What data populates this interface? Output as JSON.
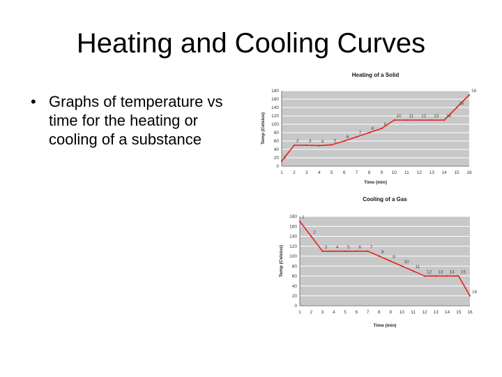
{
  "slide": {
    "title": "Heating and Cooling Curves",
    "bullet_symbol": "•",
    "bullet": "Graphs of temperature vs time for the heating or cooling of a substance"
  },
  "colors": {
    "line": "#e8201c",
    "plot_bg": "#c8c8c8",
    "grid": "#ffffff"
  },
  "chart_data": [
    {
      "type": "line",
      "title": "Heating of a Solid",
      "xlabel": "Time (min)",
      "ylabel": "Temp (Celsius)",
      "x": [
        1,
        2,
        3,
        4,
        5,
        6,
        7,
        8,
        9,
        10,
        11,
        12,
        13,
        14,
        15,
        16
      ],
      "xlim": [
        1,
        16
      ],
      "ylim": [
        0,
        180
      ],
      "yticks": [
        0,
        20,
        40,
        60,
        80,
        100,
        120,
        140,
        160,
        180
      ],
      "grid": true,
      "series": [
        {
          "values": [
            12,
            50,
            50,
            49,
            51,
            60,
            70,
            80,
            90,
            110,
            110,
            110,
            110,
            110,
            140,
            170
          ],
          "point_labels": [
            "1",
            "2",
            "3",
            "4",
            "5",
            "6",
            "7",
            "8",
            "9",
            "10",
            "11",
            "12",
            "13",
            "14",
            "15",
            "16"
          ]
        }
      ]
    },
    {
      "type": "line",
      "title": "Cooling of a Gas",
      "xlabel": "Time (min)",
      "ylabel": "Temp (Celsius)",
      "x": [
        1,
        2,
        3,
        4,
        5,
        6,
        7,
        8,
        9,
        10,
        11,
        12,
        13,
        14,
        15,
        16
      ],
      "xlim": [
        1,
        16
      ],
      "ylim": [
        0,
        180
      ],
      "yticks": [
        0,
        20,
        40,
        60,
        80,
        100,
        120,
        140,
        160,
        180
      ],
      "grid": true,
      "series": [
        {
          "values": [
            170,
            140,
            110,
            110,
            110,
            110,
            110,
            100,
            90,
            80,
            70,
            60,
            60,
            60,
            60,
            20
          ],
          "point_labels": [
            "1",
            "2",
            "3",
            "4",
            "5",
            "6",
            "7",
            "8",
            "9",
            "10",
            "11",
            "12",
            "13",
            "14",
            "15",
            "16"
          ]
        }
      ]
    }
  ]
}
